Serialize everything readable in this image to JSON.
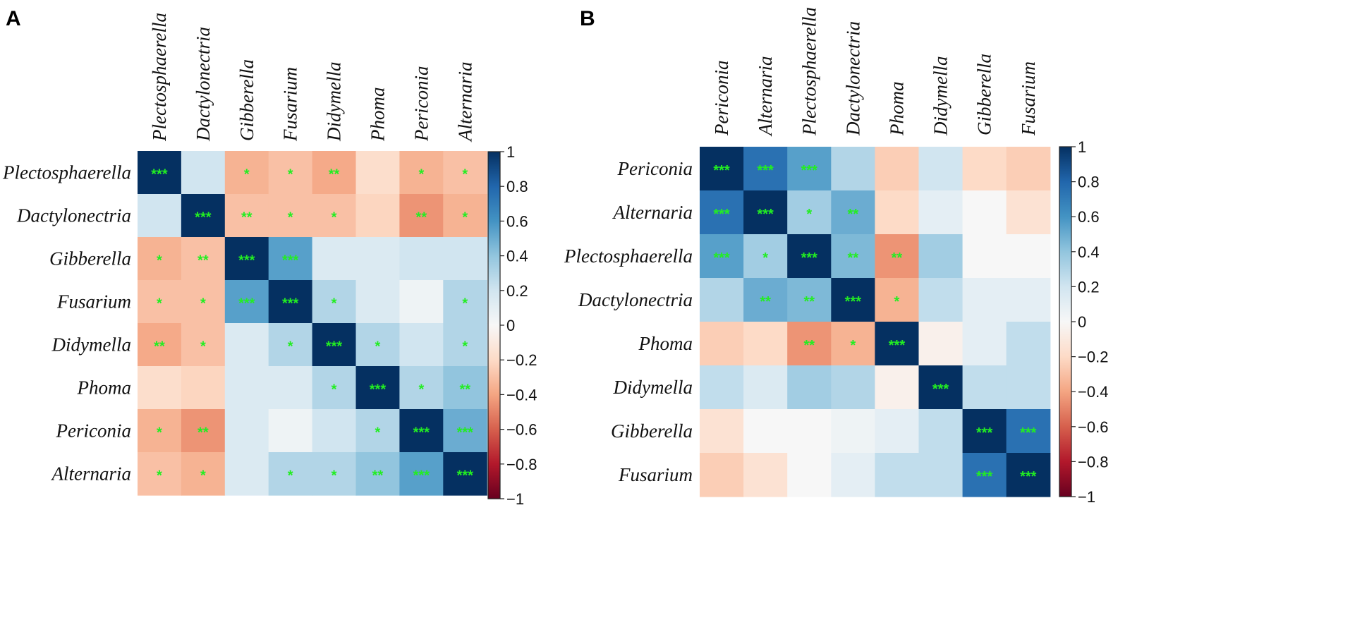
{
  "colors": {
    "significance": "#22ee22",
    "scale": [
      [
        -1.0,
        "#67001f"
      ],
      [
        -0.8,
        "#b2182b"
      ],
      [
        -0.6,
        "#d6604d"
      ],
      [
        -0.4,
        "#f4a582"
      ],
      [
        -0.2,
        "#fddbc7"
      ],
      [
        0.0,
        "#f7f7f7"
      ],
      [
        0.2,
        "#d1e5f0"
      ],
      [
        0.4,
        "#92c5de"
      ],
      [
        0.6,
        "#4393c3"
      ],
      [
        0.8,
        "#2166ac"
      ],
      [
        1.0,
        "#053061"
      ]
    ]
  },
  "colorbar": {
    "ticks": [
      1,
      0.8,
      0.6,
      0.4,
      0.2,
      0,
      -0.2,
      -0.4,
      -0.6,
      -0.8,
      -1
    ],
    "tick_labels": [
      "1",
      "0.8",
      "0.6",
      "0.4",
      "0.2",
      "0",
      "−0.2",
      "−0.4",
      "−0.6",
      "−0.8",
      "−1"
    ]
  },
  "chart_data": [
    {
      "type": "heatmap",
      "panel": "A",
      "title": "",
      "xlabel": "",
      "ylabel": "",
      "value_range": [
        -1,
        1
      ],
      "labels": [
        "Plectosphaerella",
        "Dactylonectria",
        "Gibberella",
        "Fusarium",
        "Didymella",
        "Phoma",
        "Periconia",
        "Alternaria"
      ],
      "values": [
        [
          1.0,
          0.2,
          -0.35,
          -0.3,
          -0.38,
          -0.18,
          -0.35,
          -0.3
        ],
        [
          0.2,
          1.0,
          -0.3,
          -0.3,
          -0.3,
          -0.22,
          -0.45,
          -0.35
        ],
        [
          -0.35,
          -0.3,
          1.0,
          0.55,
          0.15,
          0.15,
          0.2,
          0.2
        ],
        [
          -0.3,
          -0.3,
          0.55,
          1.0,
          0.3,
          0.15,
          0.05,
          0.3
        ],
        [
          -0.38,
          -0.3,
          0.15,
          0.3,
          1.0,
          0.3,
          0.2,
          0.3
        ],
        [
          -0.18,
          -0.22,
          0.15,
          0.15,
          0.3,
          1.0,
          0.3,
          0.4
        ],
        [
          -0.35,
          -0.45,
          0.15,
          0.05,
          0.2,
          0.3,
          1.0,
          0.5
        ],
        [
          -0.3,
          -0.35,
          0.15,
          0.3,
          0.3,
          0.4,
          0.55,
          1.0
        ]
      ],
      "significance": [
        [
          "***",
          "",
          "*",
          "*",
          "**",
          "",
          "*",
          "*"
        ],
        [
          "",
          "***",
          "**",
          "*",
          "*",
          "",
          "**",
          "*"
        ],
        [
          "*",
          "**",
          "***",
          "***",
          "",
          "",
          "",
          ""
        ],
        [
          "*",
          "*",
          "***",
          "***",
          "*",
          "",
          "",
          "*"
        ],
        [
          "**",
          "*",
          "",
          "*",
          "***",
          "*",
          "",
          "*"
        ],
        [
          "",
          "",
          "",
          "",
          "*",
          "***",
          "*",
          "**"
        ],
        [
          "*",
          "**",
          "",
          "",
          "",
          "*",
          "***",
          "***"
        ],
        [
          "*",
          "*",
          "",
          "*",
          "*",
          "**",
          "***",
          "***"
        ]
      ]
    },
    {
      "type": "heatmap",
      "panel": "B",
      "title": "",
      "xlabel": "",
      "ylabel": "",
      "value_range": [
        -1,
        1
      ],
      "labels": [
        "Periconia",
        "Alternaria",
        "Plectosphaerella",
        "Dactylonectria",
        "Phoma",
        "Didymella",
        "Gibberella",
        "Fusarium"
      ],
      "values": [
        [
          1.0,
          0.75,
          0.55,
          0.3,
          -0.25,
          0.2,
          -0.2,
          -0.25
        ],
        [
          0.75,
          1.0,
          0.35,
          0.5,
          -0.2,
          0.1,
          0.0,
          -0.15
        ],
        [
          0.55,
          0.35,
          1.0,
          0.45,
          -0.45,
          0.35,
          0.0,
          0.0
        ],
        [
          0.3,
          0.5,
          0.45,
          1.0,
          -0.35,
          0.25,
          0.1,
          0.1
        ],
        [
          -0.25,
          -0.2,
          -0.45,
          -0.35,
          1.0,
          -0.05,
          0.1,
          0.25
        ],
        [
          0.25,
          0.15,
          0.35,
          0.3,
          -0.05,
          1.0,
          0.25,
          0.25
        ],
        [
          -0.15,
          0.0,
          0.0,
          0.05,
          0.1,
          0.25,
          1.0,
          0.75
        ],
        [
          -0.25,
          -0.15,
          0.0,
          0.1,
          0.25,
          0.25,
          0.75,
          1.0
        ]
      ],
      "significance": [
        [
          "***",
          "***",
          "***",
          "",
          "",
          "",
          "",
          ""
        ],
        [
          "***",
          "***",
          "*",
          "**",
          "",
          "",
          "",
          ""
        ],
        [
          "***",
          "*",
          "***",
          "**",
          "**",
          "",
          "",
          ""
        ],
        [
          "",
          "**",
          "**",
          "***",
          "*",
          "",
          "",
          ""
        ],
        [
          "",
          "",
          "**",
          "*",
          "***",
          "",
          "",
          ""
        ],
        [
          "",
          "",
          "",
          "",
          "",
          "***",
          "",
          ""
        ],
        [
          "",
          "",
          "",
          "",
          "",
          "",
          "***",
          "***"
        ],
        [
          "",
          "",
          "",
          "",
          "",
          "",
          "***",
          "***"
        ]
      ]
    }
  ]
}
